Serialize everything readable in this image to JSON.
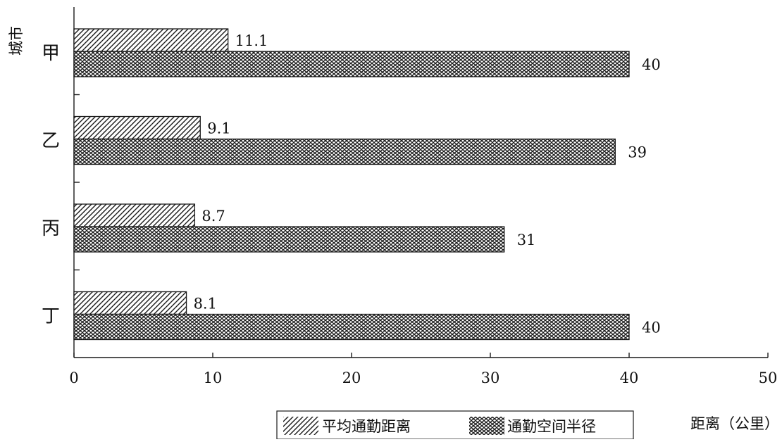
{
  "chart_data": {
    "type": "bar",
    "orientation": "horizontal",
    "categories": [
      "甲",
      "乙",
      "丙",
      "丁"
    ],
    "series": [
      {
        "name": "平均通勤距离",
        "values": [
          11.1,
          9.1,
          8.7,
          8.1
        ],
        "pattern": "diagonal-hatch"
      },
      {
        "name": "通勤空间半径",
        "values": [
          40,
          39,
          31,
          40
        ],
        "pattern": "weave-hatch"
      }
    ],
    "data_labels": [
      [
        "11.1",
        "9.1",
        "8.7",
        "8.1"
      ],
      [
        "40",
        "39",
        "31",
        "40"
      ]
    ],
    "xlabel": "距离（公里）",
    "ylabel": "城市",
    "xlim": [
      0,
      50
    ],
    "xticks": [
      0,
      10,
      20,
      30,
      40,
      50
    ],
    "grid": false,
    "legend_position": "bottom",
    "colors": {
      "ink": "#1a1a1a",
      "background": "#ffffff"
    }
  }
}
